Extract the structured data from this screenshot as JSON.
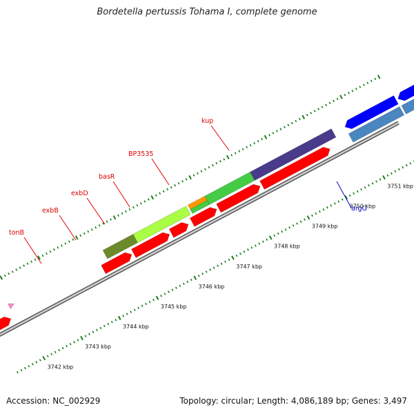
{
  "title": "Bordetella pertussis Tohama I, complete genome",
  "footer": {
    "accession": "Accession: NC_002929",
    "topology": "Topology: circular; Length: 4,086,189 bp; Genes: 3,497"
  },
  "ticks": [
    "3742 kbp",
    "3743 kbp",
    "3744 kbp",
    "3745 kbp",
    "3746 kbp",
    "3747 kbp",
    "3748 kbp",
    "3749 kbp",
    "3750 kbp",
    "3751 kbp"
  ],
  "gene_labels": [
    {
      "name": "tonB",
      "color": "#dd0000"
    },
    {
      "name": "exbB",
      "color": "#dd0000"
    },
    {
      "name": "exbD",
      "color": "#dd0000"
    },
    {
      "name": "basR",
      "color": "#dd0000"
    },
    {
      "name": "BP3535",
      "color": "#dd0000"
    },
    {
      "name": "kup",
      "color": "#dd0000"
    },
    {
      "name": "argG",
      "color": "#0000cc"
    }
  ],
  "colors": {
    "backbone": "#8a8a8a",
    "tick": "#1a7a1a",
    "forward_cds": "#ff0000",
    "reverse_cds": "#0000ff",
    "reverse_cds_alt": "#4a86c0",
    "tonB": "#6b8a2a",
    "exbB": "#aaff44",
    "exbD": "#44cc44",
    "basR": "#ff9900",
    "BP3535": "#44cc44",
    "kup": "#4a3a8a",
    "small_magenta": "#ee1188",
    "small_pink": "#ff88cc"
  }
}
